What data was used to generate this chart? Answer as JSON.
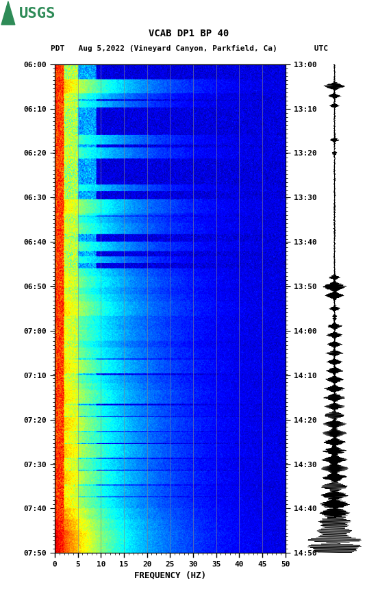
{
  "title_line1": "VCAB DP1 BP 40",
  "title_line2": "PDT   Aug 5,2022 (Vineyard Canyon, Parkfield, Ca)        UTC",
  "left_yticks": [
    "06:00",
    "06:10",
    "06:20",
    "06:30",
    "06:40",
    "06:50",
    "07:00",
    "07:10",
    "07:20",
    "07:30",
    "07:40",
    "07:50"
  ],
  "right_yticks": [
    "13:00",
    "13:10",
    "13:20",
    "13:30",
    "13:40",
    "13:50",
    "14:00",
    "14:10",
    "14:20",
    "14:30",
    "14:40",
    "14:50"
  ],
  "xticks": [
    0,
    5,
    10,
    15,
    20,
    25,
    30,
    35,
    40,
    45,
    50
  ],
  "xlabel": "FREQUENCY (HZ)",
  "freq_min": 0,
  "freq_max": 50,
  "time_steps": 660,
  "freq_steps": 500,
  "vgrid_positions": [
    5,
    10,
    15,
    20,
    25,
    30,
    35,
    40,
    45
  ],
  "background_color": "#ffffff",
  "colormap_nodes": [
    [
      0.0,
      "#00007F"
    ],
    [
      0.12,
      "#0000FF"
    ],
    [
      0.25,
      "#007FFF"
    ],
    [
      0.38,
      "#00FFFF"
    ],
    [
      0.5,
      "#7FFF7F"
    ],
    [
      0.62,
      "#FFFF00"
    ],
    [
      0.75,
      "#FF7F00"
    ],
    [
      0.88,
      "#FF0000"
    ],
    [
      1.0,
      "#7F0000"
    ]
  ]
}
